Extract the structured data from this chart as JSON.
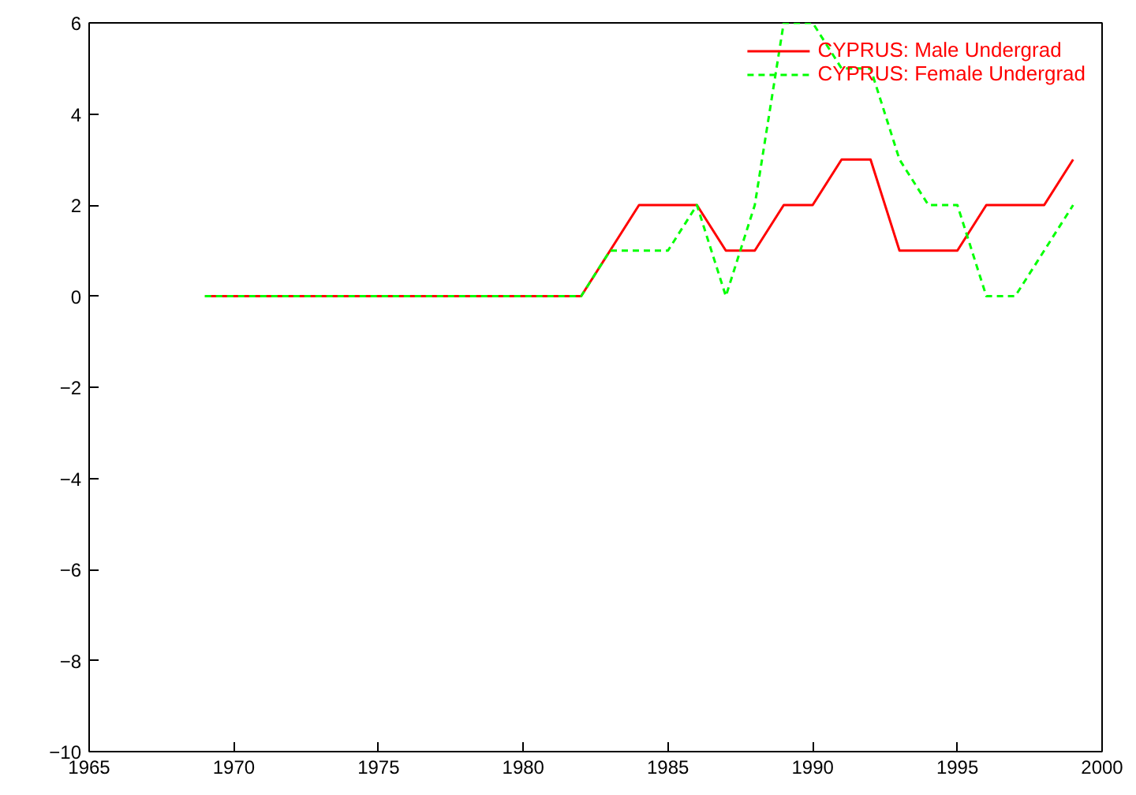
{
  "chart_data": {
    "type": "line",
    "x": [
      1969,
      1970,
      1971,
      1972,
      1973,
      1974,
      1975,
      1976,
      1977,
      1978,
      1979,
      1980,
      1981,
      1982,
      1983,
      1984,
      1985,
      1986,
      1987,
      1988,
      1989,
      1990,
      1991,
      1992,
      1993,
      1994,
      1995,
      1996,
      1997,
      1998,
      1999
    ],
    "series": [
      {
        "name": "CYPRUS: Male Undergrad",
        "color": "#ff0000",
        "line_style": "solid",
        "values": [
          0,
          0,
          0,
          0,
          0,
          0,
          0,
          0,
          0,
          0,
          0,
          0,
          0,
          0,
          1,
          2,
          2,
          2,
          1,
          1,
          2,
          2,
          3,
          3,
          1,
          1,
          1,
          2,
          2,
          2,
          3
        ]
      },
      {
        "name": "CYPRUS: Female Undergrad",
        "color": "#00ff00",
        "line_style": "dashed",
        "values": [
          0,
          0,
          0,
          0,
          0,
          0,
          0,
          0,
          0,
          0,
          0,
          0,
          0,
          0,
          1,
          1,
          1,
          2,
          0,
          2,
          6,
          6,
          5,
          5,
          3,
          2,
          2,
          0,
          0,
          1,
          2
        ]
      }
    ],
    "xlim": [
      1965,
      2000
    ],
    "xticks": [
      1965,
      1970,
      1975,
      1980,
      1985,
      1990,
      1995,
      2000
    ],
    "ylim": [
      -10,
      6
    ],
    "yticks": [
      -10,
      -8,
      -6,
      -4,
      -2,
      0,
      2,
      4,
      6
    ],
    "grid": false,
    "legend": "top right",
    "marker": "none"
  }
}
